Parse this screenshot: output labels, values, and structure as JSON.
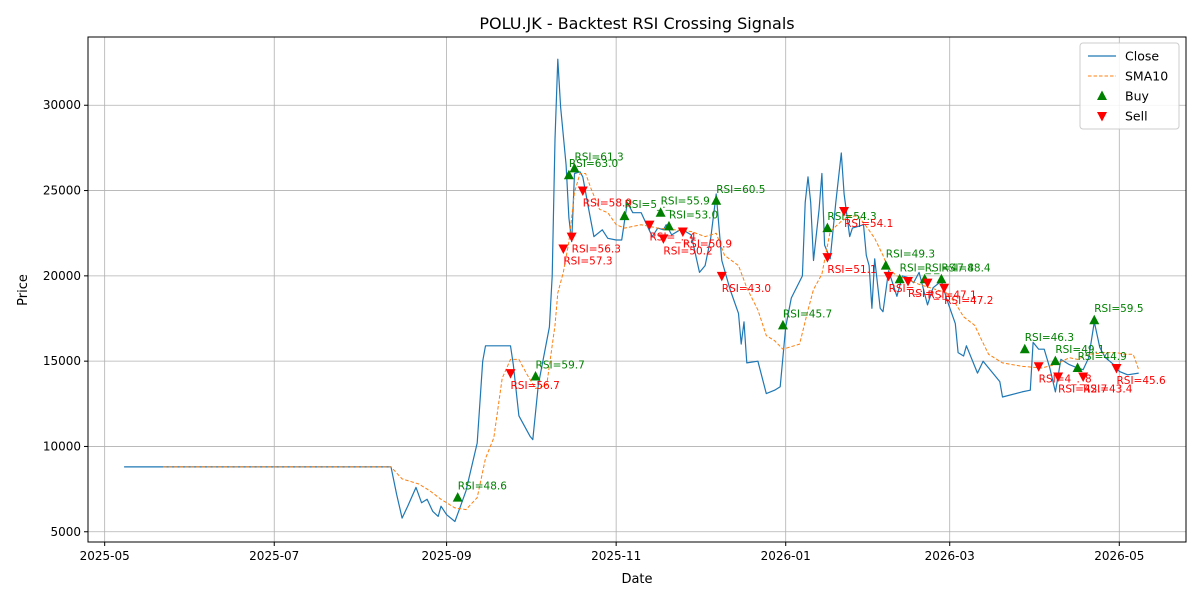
{
  "chart_data": {
    "type": "line",
    "title": "POLU.JK - Backtest RSI Crossing Signals",
    "xlabel": "Date",
    "ylabel": "Price",
    "xlim": [
      "2025-04-25",
      "2026-05-25"
    ],
    "ylim": [
      4400,
      34000
    ],
    "grid": true,
    "legend_position": "top-right",
    "x_ticks": [
      "2025-05",
      "2025-07",
      "2025-09",
      "2025-11",
      "2026-01",
      "2026-03",
      "2026-05"
    ],
    "y_ticks": [
      5000,
      10000,
      15000,
      20000,
      25000,
      30000
    ],
    "colors": {
      "close": "#1f77b4",
      "sma": "#ff7f0e",
      "buy": "#008000",
      "sell": "#ff0000",
      "grid": "#b0b0b0"
    },
    "legend": [
      {
        "label": "Close",
        "kind": "line",
        "color": "#1f77b4"
      },
      {
        "label": "SMA10",
        "kind": "dashed",
        "color": "#ff7f0e"
      },
      {
        "label": "Buy",
        "kind": "up",
        "color": "#008000"
      },
      {
        "label": "Sell",
        "kind": "down",
        "color": "#ff0000"
      }
    ],
    "series": [
      {
        "name": "Close",
        "points": [
          [
            "2025-05-08",
            8800
          ],
          [
            "2025-08-12",
            8800
          ],
          [
            "2025-08-14",
            7200
          ],
          [
            "2025-08-16",
            5800
          ],
          [
            "2025-08-18",
            6500
          ],
          [
            "2025-08-21",
            7600
          ],
          [
            "2025-08-23",
            6700
          ],
          [
            "2025-08-25",
            6900
          ],
          [
            "2025-08-27",
            6200
          ],
          [
            "2025-08-29",
            5900
          ],
          [
            "2025-08-30",
            6500
          ],
          [
            "2025-09-01",
            6000
          ],
          [
            "2025-09-04",
            5600
          ],
          [
            "2025-09-06",
            6500
          ],
          [
            "2025-09-08",
            7400
          ],
          [
            "2025-09-12",
            10200
          ],
          [
            "2025-09-14",
            15000
          ],
          [
            "2025-09-15",
            15900
          ],
          [
            "2025-09-24",
            15900
          ],
          [
            "2025-09-25",
            14800
          ],
          [
            "2025-09-27",
            11800
          ],
          [
            "2025-10-01",
            10600
          ],
          [
            "2025-10-02",
            10400
          ],
          [
            "2025-10-04",
            13600
          ],
          [
            "2025-10-08",
            17000
          ],
          [
            "2025-10-09",
            20000
          ],
          [
            "2025-10-10",
            28000
          ],
          [
            "2025-10-11",
            32700
          ],
          [
            "2025-10-12",
            29900
          ],
          [
            "2025-10-14",
            26500
          ],
          [
            "2025-10-15",
            23400
          ],
          [
            "2025-10-16",
            22000
          ],
          [
            "2025-10-17",
            26000
          ],
          [
            "2025-10-19",
            26100
          ],
          [
            "2025-10-20",
            25800
          ],
          [
            "2025-10-22",
            24000
          ],
          [
            "2025-10-24",
            22300
          ],
          [
            "2025-10-27",
            22700
          ],
          [
            "2025-10-29",
            22200
          ],
          [
            "2025-11-01",
            22100
          ],
          [
            "2025-11-03",
            22100
          ],
          [
            "2025-11-05",
            24300
          ],
          [
            "2025-11-07",
            23700
          ],
          [
            "2025-11-10",
            23700
          ],
          [
            "2025-11-12",
            23000
          ],
          [
            "2025-11-14",
            22300
          ],
          [
            "2025-11-16",
            22800
          ],
          [
            "2025-11-18",
            22700
          ],
          [
            "2025-11-19",
            23000
          ],
          [
            "2025-11-21",
            22400
          ],
          [
            "2025-11-24",
            22700
          ],
          [
            "2025-11-26",
            22600
          ],
          [
            "2025-11-28",
            22400
          ],
          [
            "2025-12-01",
            20200
          ],
          [
            "2025-12-03",
            20600
          ],
          [
            "2025-12-05",
            22200
          ],
          [
            "2025-12-07",
            24800
          ],
          [
            "2025-12-09",
            20900
          ],
          [
            "2025-12-12",
            19200
          ],
          [
            "2025-12-15",
            17800
          ],
          [
            "2025-12-16",
            16000
          ],
          [
            "2025-12-17",
            17300
          ],
          [
            "2025-12-18",
            14900
          ],
          [
            "2025-12-22",
            15000
          ],
          [
            "2025-12-25",
            13100
          ],
          [
            "2025-12-28",
            13300
          ],
          [
            "2025-12-30",
            13500
          ],
          [
            "2026-01-01",
            17000
          ],
          [
            "2026-01-03",
            18700
          ],
          [
            "2026-01-07",
            20000
          ],
          [
            "2026-01-08",
            24300
          ],
          [
            "2026-01-09",
            25800
          ],
          [
            "2026-01-10",
            24300
          ],
          [
            "2026-01-11",
            20900
          ],
          [
            "2026-01-13",
            23900
          ],
          [
            "2026-01-14",
            26000
          ],
          [
            "2026-01-15",
            21800
          ],
          [
            "2026-01-17",
            21000
          ],
          [
            "2026-01-19",
            24300
          ],
          [
            "2026-01-21",
            27200
          ],
          [
            "2026-01-22",
            24800
          ],
          [
            "2026-01-24",
            22300
          ],
          [
            "2026-01-25",
            22800
          ],
          [
            "2026-01-27",
            22900
          ],
          [
            "2026-01-29",
            23000
          ],
          [
            "2026-01-30",
            21200
          ],
          [
            "2026-01-31",
            20600
          ],
          [
            "2026-02-01",
            18100
          ],
          [
            "2026-02-02",
            21000
          ],
          [
            "2026-02-04",
            18100
          ],
          [
            "2026-02-05",
            17900
          ],
          [
            "2026-02-07",
            20300
          ],
          [
            "2026-02-10",
            18800
          ],
          [
            "2026-02-12",
            20000
          ],
          [
            "2026-02-14",
            19900
          ],
          [
            "2026-02-16",
            19600
          ],
          [
            "2026-02-18",
            20200
          ],
          [
            "2026-02-21",
            18300
          ],
          [
            "2026-02-23",
            19300
          ],
          [
            "2026-02-26",
            19700
          ],
          [
            "2026-02-28",
            18600
          ],
          [
            "2026-03-03",
            17200
          ],
          [
            "2026-03-04",
            15500
          ],
          [
            "2026-03-06",
            15300
          ],
          [
            "2026-03-07",
            15900
          ],
          [
            "2026-03-11",
            14300
          ],
          [
            "2026-03-13",
            15000
          ],
          [
            "2026-03-17",
            14200
          ],
          [
            "2026-03-19",
            13800
          ],
          [
            "2026-03-20",
            12900
          ],
          [
            "2026-03-27",
            13200
          ],
          [
            "2026-03-30",
            13300
          ],
          [
            "2026-03-31",
            16100
          ],
          [
            "2026-04-02",
            15700
          ],
          [
            "2026-04-04",
            15700
          ],
          [
            "2026-04-06",
            14600
          ],
          [
            "2026-04-08",
            13200
          ],
          [
            "2026-04-10",
            15100
          ],
          [
            "2026-04-13",
            14800
          ],
          [
            "2026-04-16",
            14600
          ],
          [
            "2026-04-18",
            14500
          ],
          [
            "2026-04-20",
            15200
          ],
          [
            "2026-04-22",
            17300
          ],
          [
            "2026-04-24",
            15800
          ],
          [
            "2026-04-26",
            15200
          ],
          [
            "2026-04-29",
            14800
          ],
          [
            "2026-05-01",
            14400
          ],
          [
            "2026-05-04",
            14200
          ],
          [
            "2026-05-08",
            14300
          ]
        ]
      },
      {
        "name": "SMA10",
        "points": [
          [
            "2025-05-22",
            8800
          ],
          [
            "2025-08-12",
            8800
          ],
          [
            "2025-08-16",
            8100
          ],
          [
            "2025-08-22",
            7800
          ],
          [
            "2025-08-26",
            7400
          ],
          [
            "2025-08-30",
            6900
          ],
          [
            "2025-09-04",
            6400
          ],
          [
            "2025-09-08",
            6300
          ],
          [
            "2025-09-12",
            7000
          ],
          [
            "2025-09-15",
            9300
          ],
          [
            "2025-09-18",
            10500
          ],
          [
            "2025-09-21",
            14000
          ],
          [
            "2025-09-24",
            15100
          ],
          [
            "2025-09-27",
            15100
          ],
          [
            "2025-09-30",
            14200
          ],
          [
            "2025-10-03",
            13400
          ],
          [
            "2025-10-07",
            13600
          ],
          [
            "2025-10-10",
            17100
          ],
          [
            "2025-10-11",
            19000
          ],
          [
            "2025-10-13",
            20200
          ],
          [
            "2025-10-15",
            22000
          ],
          [
            "2025-10-17",
            24900
          ],
          [
            "2025-10-19",
            26000
          ],
          [
            "2025-10-21",
            26000
          ],
          [
            "2025-10-23",
            25100
          ],
          [
            "2025-10-26",
            23900
          ],
          [
            "2025-10-29",
            23700
          ],
          [
            "2025-11-01",
            23000
          ],
          [
            "2025-11-04",
            22800
          ],
          [
            "2025-11-10",
            23000
          ],
          [
            "2025-11-16",
            22800
          ],
          [
            "2025-11-22",
            22700
          ],
          [
            "2025-11-28",
            22600
          ],
          [
            "2025-12-03",
            22300
          ],
          [
            "2025-12-07",
            22500
          ],
          [
            "2025-12-10",
            21200
          ],
          [
            "2025-12-15",
            20600
          ],
          [
            "2025-12-18",
            19300
          ],
          [
            "2025-12-22",
            18000
          ],
          [
            "2025-12-25",
            16500
          ],
          [
            "2025-12-28",
            16200
          ],
          [
            "2025-12-31",
            15700
          ],
          [
            "2026-01-06",
            16000
          ],
          [
            "2026-01-09",
            18000
          ],
          [
            "2026-01-11",
            19200
          ],
          [
            "2026-01-14",
            20100
          ],
          [
            "2026-01-17",
            22600
          ],
          [
            "2026-01-21",
            23200
          ],
          [
            "2026-01-24",
            23500
          ],
          [
            "2026-01-27",
            23500
          ],
          [
            "2026-01-30",
            22900
          ],
          [
            "2026-02-02",
            22200
          ],
          [
            "2026-02-05",
            21200
          ],
          [
            "2026-02-07",
            20400
          ],
          [
            "2026-02-10",
            20000
          ],
          [
            "2026-02-14",
            19800
          ],
          [
            "2026-02-18",
            19500
          ],
          [
            "2026-02-22",
            19300
          ],
          [
            "2026-02-26",
            19100
          ],
          [
            "2026-02-28",
            19000
          ],
          [
            "2026-03-03",
            18400
          ],
          [
            "2026-03-06",
            17600
          ],
          [
            "2026-03-10",
            17100
          ],
          [
            "2026-03-12",
            16400
          ],
          [
            "2026-03-15",
            15400
          ],
          [
            "2026-03-20",
            14900
          ],
          [
            "2026-03-27",
            14700
          ],
          [
            "2026-04-03",
            14600
          ],
          [
            "2026-04-08",
            14800
          ],
          [
            "2026-04-13",
            15200
          ],
          [
            "2026-04-16",
            15100
          ],
          [
            "2026-04-20",
            15400
          ],
          [
            "2026-04-26",
            15500
          ],
          [
            "2026-04-30",
            15500
          ],
          [
            "2026-05-03",
            15400
          ],
          [
            "2026-05-06",
            15400
          ],
          [
            "2026-05-08",
            14500
          ]
        ]
      }
    ],
    "buy_signals": [
      {
        "date": "2025-09-05",
        "price": 7000,
        "label": "RSI=48.6"
      },
      {
        "date": "2025-10-03",
        "price": 14100,
        "label": "RSI=59.7"
      },
      {
        "date": "2025-10-15",
        "price": 25900,
        "label": "RSI=63.0"
      },
      {
        "date": "2025-10-17",
        "price": 26300,
        "label": "RSI=61.3"
      },
      {
        "date": "2025-11-04",
        "price": 23500,
        "label": "RSI=5_._"
      },
      {
        "date": "2025-11-17",
        "price": 23700,
        "label": "RSI=55.9"
      },
      {
        "date": "2025-11-20",
        "price": 22900,
        "label": "RSI=53.0"
      },
      {
        "date": "2025-12-07",
        "price": 24400,
        "label": "RSI=60.5"
      },
      {
        "date": "2025-12-31",
        "price": 17100,
        "label": "RSI=45.7"
      },
      {
        "date": "2026-01-16",
        "price": 22800,
        "label": "RSI=54.3"
      },
      {
        "date": "2026-02-06",
        "price": 20600,
        "label": "RSI=49.3"
      },
      {
        "date": "2026-02-11",
        "price": 19800,
        "label": "RSI=_._"
      },
      {
        "date": "2026-02-20",
        "price": 19800,
        "label": "RSI=47.8"
      },
      {
        "date": "2026-02-26",
        "price": 19800,
        "label": "RSI=48.4"
      },
      {
        "date": "2026-03-28",
        "price": 15700,
        "label": "RSI=46.3"
      },
      {
        "date": "2026-04-08",
        "price": 15000,
        "label": "RSI=49.1"
      },
      {
        "date": "2026-04-16",
        "price": 14600,
        "label": "RSI=44.9"
      },
      {
        "date": "2026-04-22",
        "price": 17400,
        "label": "RSI=59.5"
      }
    ],
    "sell_signals": [
      {
        "date": "2025-09-24",
        "price": 14300,
        "label": "RSI=56.7"
      },
      {
        "date": "2025-10-13",
        "price": 21600,
        "label": "RSI=57.3"
      },
      {
        "date": "2025-10-16",
        "price": 22300,
        "label": "RSI=56.3"
      },
      {
        "date": "2025-10-20",
        "price": 25000,
        "label": "RSI=58.9"
      },
      {
        "date": "2025-11-13",
        "price": 23000,
        "label": "RSI=_._4"
      },
      {
        "date": "2025-11-18",
        "price": 22200,
        "label": "RSI=50.2"
      },
      {
        "date": "2025-11-25",
        "price": 22600,
        "label": "RSI=50.9"
      },
      {
        "date": "2025-12-09",
        "price": 20000,
        "label": "RSI=43.0"
      },
      {
        "date": "2026-01-16",
        "price": 21100,
        "label": "RSI=51.1"
      },
      {
        "date": "2026-01-22",
        "price": 23800,
        "label": "RSI=54.1"
      },
      {
        "date": "2026-02-07",
        "price": 20000,
        "label": "RSI=_._"
      },
      {
        "date": "2026-02-14",
        "price": 19700,
        "label": "RSI=_._"
      },
      {
        "date": "2026-02-21",
        "price": 19600,
        "label": "RSI=47.1"
      },
      {
        "date": "2026-02-27",
        "price": 19300,
        "label": "RSI=47.2"
      },
      {
        "date": "2026-04-02",
        "price": 14700,
        "label": "RSI=4_._8"
      },
      {
        "date": "2026-04-09",
        "price": 14100,
        "label": "RSI=42.7"
      },
      {
        "date": "2026-04-18",
        "price": 14100,
        "label": "RSI=43.4"
      },
      {
        "date": "2026-04-30",
        "price": 14600,
        "label": "RSI=45.6"
      }
    ]
  }
}
